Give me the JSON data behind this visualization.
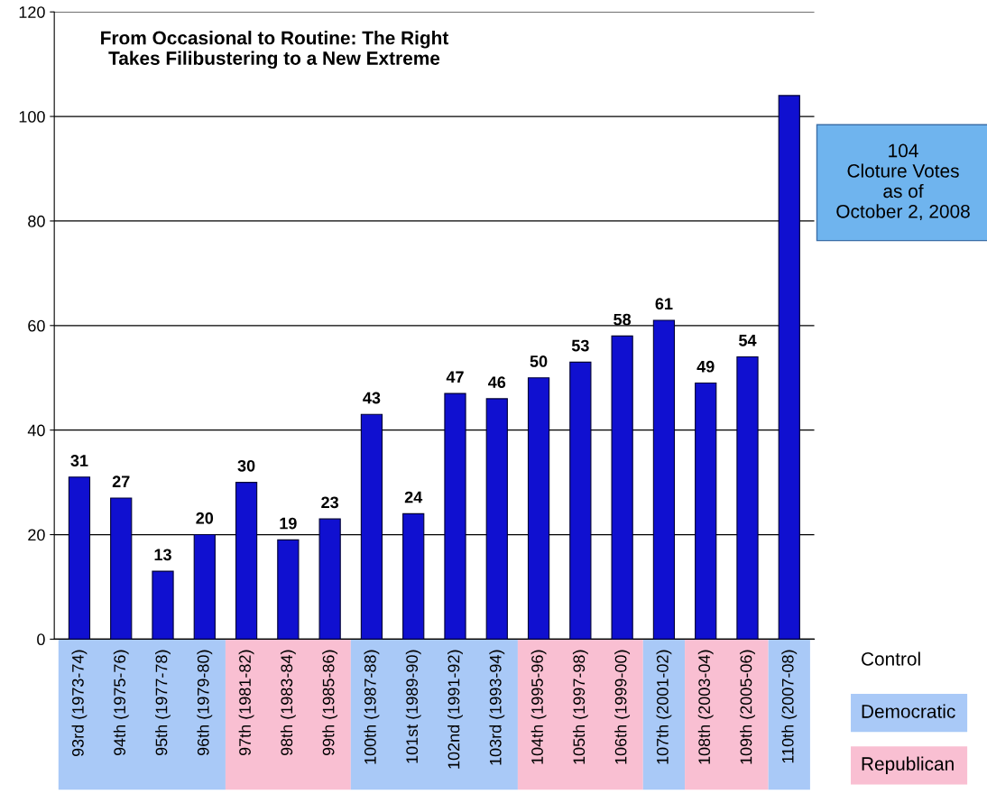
{
  "chart_data": [
    {
      "type": "bar",
      "title": "From Occasional to Routine: The Right\nTakes Filibustering to a New Extreme",
      "categories": [
        "93rd (1973-74)",
        "94th (1975-76)",
        "95th (1977-78)",
        "96th (1979-80)",
        "97th (1981-82)",
        "98th (1983-84)",
        "99th (1985-86)",
        "100th (1987-88)",
        "101st (1989-90)",
        "102nd (1991-92)",
        "103rd (1993-94)",
        "104th (1995-96)",
        "105th (1997-98)",
        "106th (1999-00)",
        "107th (2001-02)",
        "108th (2003-04)",
        "109th (2005-06)",
        "110th (2007-08)"
      ],
      "values": [
        31,
        27,
        13,
        20,
        30,
        19,
        23,
        43,
        24,
        47,
        46,
        50,
        53,
        58,
        61,
        49,
        54,
        104
      ],
      "value_labels": [
        "31",
        "27",
        "13",
        "20",
        "30",
        "19",
        "23",
        "43",
        "24",
        "47",
        "46",
        "50",
        "53",
        "58",
        "61",
        "49",
        "54",
        null
      ],
      "color": "#1010d0",
      "ylim": [
        0,
        120
      ],
      "yticks": [
        0,
        20,
        40,
        60,
        80,
        100,
        120
      ],
      "grid": "y",
      "annotations": [
        "104\nCloture Votes\nas of\nOctober 2, 2008"
      ]
    },
    {
      "type": "other",
      "title": "Control",
      "categories": [
        "Democratic",
        "Republican"
      ],
      "colors": [
        "#a9c9f7",
        "#f9bfd2"
      ]
    }
  ]
}
